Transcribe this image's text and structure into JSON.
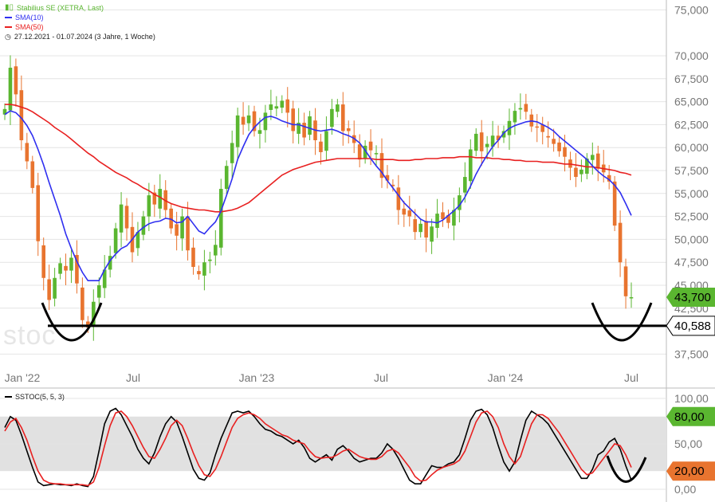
{
  "chart_data": [
    {
      "type": "candlestick",
      "legend": {
        "symbol": "Stabilius SE (XETRA, Last)",
        "sma10": "SMA(10)",
        "sma50": "SMA(50)",
        "period": "27.12.2021 - 01.07.2024  (3 Jahre, 1 Woche)"
      },
      "ylim": [
        36000,
        78000
      ],
      "y_ticks": [
        "75,000",
        "70,000",
        "67,500",
        "65,000",
        "62,500",
        "60,000",
        "57,500",
        "55,000",
        "52,500",
        "50,000",
        "47,500",
        "45,000",
        "42,500",
        "37,500"
      ],
      "x_ticks": [
        "Jan '22",
        "Jul",
        "Jan '23",
        "Jul",
        "Jan '24",
        "Jul"
      ],
      "last_price": {
        "label": "43,700",
        "value": 43700
      },
      "support_line": {
        "label": "40,588",
        "value": 40588
      },
      "colors": {
        "up": "#5ab630",
        "down": "#e8742f",
        "sma10": "#2f2ff0",
        "sma50": "#e82020"
      },
      "watermark": "stoc",
      "weekly_closes": [
        64200,
        68700,
        65800,
        60800,
        58500,
        55600,
        49800,
        45800,
        43400,
        45800,
        47400,
        46600,
        48000,
        45200,
        41200,
        40400,
        43200,
        45000,
        46700,
        48200,
        51200,
        53800,
        51200,
        48600,
        50800,
        52500,
        54800,
        53800,
        55500,
        53200,
        51200,
        50400,
        52500,
        48800,
        47000,
        46200,
        47500,
        47800,
        49400,
        55500,
        58000,
        60500,
        63500,
        62500,
        63500,
        61800,
        61900,
        63800,
        64700,
        64500,
        65100,
        63800,
        61800,
        62700,
        61100,
        63400,
        60800,
        59500,
        61800,
        64200,
        64700,
        61800,
        61800,
        60500,
        58700,
        60200,
        59700,
        59400,
        56700,
        56400,
        55800,
        53200,
        52700,
        52500,
        50800,
        51700,
        50200,
        51400,
        52800,
        52200,
        51800,
        53200,
        54800,
        56800,
        59800,
        61500,
        59600,
        60400,
        61300,
        60800,
        61800,
        62900,
        64000,
        64300,
        63900,
        62300,
        62200,
        61700,
        61100,
        60400,
        59600,
        59000,
        57800,
        56800,
        57600,
        58800,
        59200,
        57700,
        57300,
        56300,
        51500,
        47500,
        43800,
        43700
      ],
      "sma10": [
        63600,
        64000,
        63800,
        63200,
        62400,
        61300,
        59800,
        58100,
        56200,
        54400,
        52600,
        50600,
        49000,
        47600,
        46400,
        45500,
        45500,
        45500,
        46700,
        47700,
        48400,
        49000,
        49300,
        50000,
        50800,
        51300,
        51700,
        51900,
        52000,
        52300,
        52200,
        51800,
        51900,
        52500,
        51700,
        50900,
        50600,
        51300,
        51900,
        53100,
        54800,
        56600,
        58700,
        60100,
        61400,
        62200,
        62800,
        63300,
        63400,
        63200,
        62900,
        62700,
        62500,
        62500,
        62300,
        62100,
        61900,
        61800,
        61900,
        62000,
        61800,
        61500,
        61300,
        61000,
        60500,
        59700,
        58800,
        58000,
        57300,
        56400,
        55600,
        54800,
        54000,
        53400,
        52800,
        52200,
        51900,
        51900,
        51800,
        52100,
        52600,
        53100,
        53700,
        54600,
        55800,
        57100,
        58200,
        59200,
        60100,
        60800,
        61600,
        62100,
        62400,
        62600,
        62800,
        62900,
        62800,
        62500,
        62200,
        61800,
        61200,
        60700,
        60200,
        59700,
        59200,
        58700,
        58000,
        57400,
        56900,
        56500,
        55900,
        55100,
        53900,
        52600
      ],
      "sma50": [
        64700,
        64700,
        64600,
        64400,
        64200,
        63900,
        63500,
        63100,
        62700,
        62200,
        61800,
        61400,
        60900,
        60400,
        59900,
        59400,
        59000,
        58500,
        58100,
        57700,
        57300,
        57000,
        56700,
        56300,
        56000,
        55600,
        55300,
        54900,
        54600,
        54200,
        53900,
        53700,
        53500,
        53400,
        53300,
        53200,
        53200,
        53100,
        53000,
        53000,
        53100,
        53200,
        53400,
        53700,
        54000,
        54500,
        55000,
        55500,
        56000,
        56500,
        57000,
        57300,
        57600,
        57800,
        58000,
        58200,
        58400,
        58500,
        58600,
        58700,
        58800,
        58800,
        58800,
        58800,
        58800,
        58800,
        58800,
        58700,
        58700,
        58700,
        58700,
        58600,
        58600,
        58600,
        58700,
        58700,
        58800,
        58800,
        58800,
        58900,
        58900,
        58900,
        59000,
        59000,
        59000,
        58900,
        58900,
        58900,
        58800,
        58800,
        58700,
        58700,
        58600,
        58600,
        58500,
        58500,
        58500,
        58400,
        58400,
        58400,
        58300,
        58200,
        58200,
        58100,
        58000,
        57900,
        57900,
        57800,
        57700,
        57600,
        57500,
        57300,
        57200,
        57000
      ]
    },
    {
      "type": "line",
      "title": "SSTOC(5, 5, 3)",
      "ylim": [
        0,
        100
      ],
      "y_ticks": [
        "100,00",
        "50,00",
        "0,00"
      ],
      "badges": [
        {
          "label": "80,00",
          "value": 80,
          "color": "#5ab630"
        },
        {
          "label": "20,00",
          "value": 20,
          "color": "#e8742f"
        }
      ],
      "band": [
        20,
        80
      ],
      "series": [
        {
          "color": "#000000",
          "values": [
            68,
            80,
            76,
            60,
            42,
            24,
            8,
            4,
            5,
            6,
            5,
            5,
            4,
            6,
            4,
            3,
            14,
            42,
            72,
            86,
            89,
            82,
            70,
            58,
            44,
            34,
            28,
            40,
            58,
            72,
            80,
            74,
            58,
            40,
            22,
            12,
            10,
            18,
            38,
            56,
            70,
            84,
            86,
            84,
            86,
            80,
            72,
            66,
            64,
            60,
            58,
            54,
            50,
            54,
            46,
            34,
            30,
            34,
            38,
            32,
            44,
            48,
            42,
            34,
            30,
            32,
            34,
            34,
            40,
            50,
            44,
            34,
            22,
            10,
            6,
            6,
            16,
            26,
            24,
            24,
            28,
            30,
            38,
            56,
            76,
            86,
            88,
            82,
            68,
            48,
            30,
            20,
            30,
            54,
            76,
            86,
            82,
            78,
            72,
            62,
            52,
            42,
            32,
            22,
            12,
            12,
            22,
            38,
            42,
            52,
            56,
            44,
            26,
            10
          ]
        },
        {
          "color": "#e82020",
          "values": [
            64,
            74,
            78,
            68,
            54,
            36,
            20,
            10,
            7,
            6,
            6,
            5,
            5,
            5,
            5,
            4,
            8,
            24,
            48,
            70,
            84,
            86,
            80,
            70,
            58,
            46,
            36,
            34,
            44,
            56,
            70,
            76,
            70,
            56,
            40,
            26,
            16,
            14,
            22,
            36,
            52,
            68,
            78,
            82,
            84,
            82,
            78,
            72,
            68,
            64,
            60,
            58,
            54,
            52,
            50,
            42,
            36,
            34,
            35,
            35,
            38,
            42,
            44,
            40,
            36,
            34,
            33,
            33,
            36,
            42,
            44,
            40,
            32,
            24,
            14,
            9,
            10,
            16,
            21,
            24,
            26,
            28,
            32,
            42,
            58,
            74,
            84,
            86,
            80,
            68,
            50,
            36,
            28,
            36,
            54,
            72,
            82,
            82,
            78,
            70,
            62,
            52,
            42,
            32,
            22,
            16,
            18,
            26,
            34,
            42,
            50,
            48,
            38,
            24
          ]
        }
      ]
    }
  ]
}
